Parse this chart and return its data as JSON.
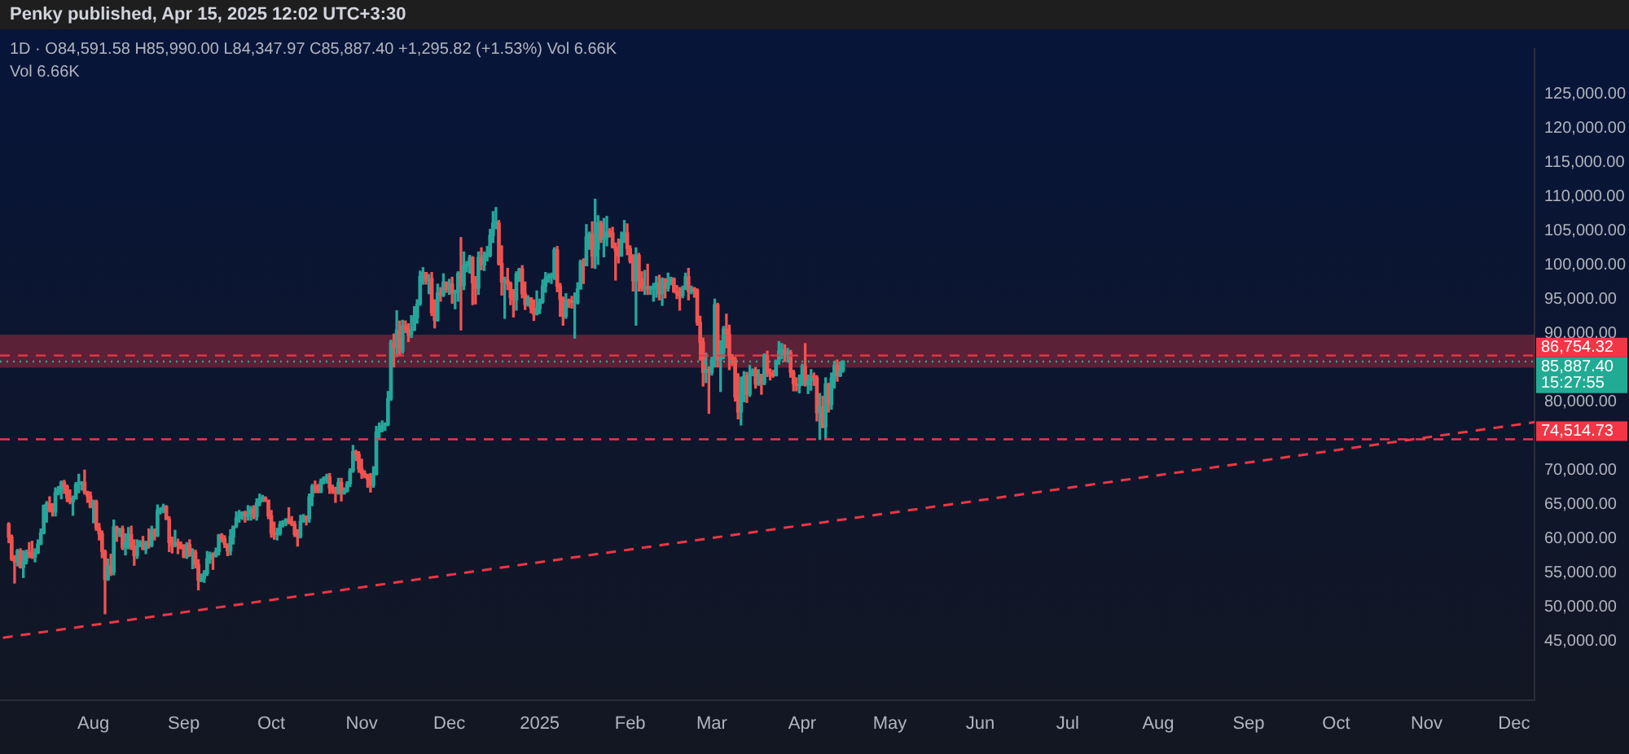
{
  "chart_data": {
    "type": "candlestick",
    "title": "Penky published, Apr 15, 2025 12:02 UTC+3:30",
    "subtitle": "1D · O84,591.58 H85,990.00 L84,347.97 C85,887.40 +1,295.82 (+1.53%) Vol 6.66K",
    "annotations": [
      "Vol 6.66K"
    ],
    "x": [
      "2024-07-03",
      "2024-07-04",
      "2024-07-05",
      "2024-07-06",
      "2024-07-07",
      "2024-07-08",
      "2024-07-09",
      "2024-07-10",
      "2024-07-11",
      "2024-07-12",
      "2024-07-13",
      "2024-07-14",
      "2024-07-15",
      "2024-07-16",
      "2024-07-17",
      "2024-07-18",
      "2024-07-19",
      "2024-07-20",
      "2024-07-21",
      "2024-07-22",
      "2024-07-23",
      "2024-07-24",
      "2024-07-25",
      "2024-07-26",
      "2024-07-27",
      "2024-07-28",
      "2024-07-29",
      "2024-07-30",
      "2024-07-31",
      "2024-08-01",
      "2024-08-02",
      "2024-08-03",
      "2024-08-04",
      "2024-08-05",
      "2024-08-06",
      "2024-08-07",
      "2024-08-08",
      "2024-08-09",
      "2024-08-10",
      "2024-08-11",
      "2024-08-12",
      "2024-08-13",
      "2024-08-14",
      "2024-08-15",
      "2024-08-16",
      "2024-08-17",
      "2024-08-18",
      "2024-08-19",
      "2024-08-20",
      "2024-08-21",
      "2024-08-22",
      "2024-08-23",
      "2024-08-24",
      "2024-08-25",
      "2024-08-26",
      "2024-08-27",
      "2024-08-28",
      "2024-08-29",
      "2024-08-30",
      "2024-08-31",
      "2024-09-01",
      "2024-09-02",
      "2024-09-03",
      "2024-09-04",
      "2024-09-05",
      "2024-09-06",
      "2024-09-07",
      "2024-09-08",
      "2024-09-09",
      "2024-09-10",
      "2024-09-11",
      "2024-09-12",
      "2024-09-13",
      "2024-09-14",
      "2024-09-15",
      "2024-09-16",
      "2024-09-17",
      "2024-09-18",
      "2024-09-19",
      "2024-09-20",
      "2024-09-21",
      "2024-09-22",
      "2024-09-23",
      "2024-09-24",
      "2024-09-25",
      "2024-09-26",
      "2024-09-27",
      "2024-09-28",
      "2024-09-29",
      "2024-09-30",
      "2024-10-01",
      "2024-10-02",
      "2024-10-03",
      "2024-10-04",
      "2024-10-05",
      "2024-10-06",
      "2024-10-07",
      "2024-10-08",
      "2024-10-09",
      "2024-10-10",
      "2024-10-11",
      "2024-10-12",
      "2024-10-13",
      "2024-10-14",
      "2024-10-15",
      "2024-10-16",
      "2024-10-17",
      "2024-10-18",
      "2024-10-19",
      "2024-10-20",
      "2024-10-21",
      "2024-10-22",
      "2024-10-23",
      "2024-10-24",
      "2024-10-25",
      "2024-10-26",
      "2024-10-27",
      "2024-10-28",
      "2024-10-29",
      "2024-10-30",
      "2024-10-31",
      "2024-11-01",
      "2024-11-02",
      "2024-11-03",
      "2024-11-04",
      "2024-11-05",
      "2024-11-06",
      "2024-11-07",
      "2024-11-08",
      "2024-11-09",
      "2024-11-10",
      "2024-11-11",
      "2024-11-12",
      "2024-11-13",
      "2024-11-14",
      "2024-11-15",
      "2024-11-16",
      "2024-11-17",
      "2024-11-18",
      "2024-11-19",
      "2024-11-20",
      "2024-11-21",
      "2024-11-22",
      "2024-11-23",
      "2024-11-24",
      "2024-11-25",
      "2024-11-26",
      "2024-11-27",
      "2024-11-28",
      "2024-11-29",
      "2024-11-30",
      "2024-12-01",
      "2024-12-02",
      "2024-12-03",
      "2024-12-04",
      "2024-12-05",
      "2024-12-06",
      "2024-12-07",
      "2024-12-08",
      "2024-12-09",
      "2024-12-10",
      "2024-12-11",
      "2024-12-12",
      "2024-12-13",
      "2024-12-14",
      "2024-12-15",
      "2024-12-16",
      "2024-12-17",
      "2024-12-18",
      "2024-12-19",
      "2024-12-20",
      "2024-12-21",
      "2024-12-22",
      "2024-12-23",
      "2024-12-24",
      "2024-12-25",
      "2024-12-26",
      "2024-12-27",
      "2024-12-28",
      "2024-12-29",
      "2024-12-30",
      "2024-12-31",
      "2025-01-01",
      "2025-01-02",
      "2025-01-03",
      "2025-01-04",
      "2025-01-05",
      "2025-01-06",
      "2025-01-07",
      "2025-01-08",
      "2025-01-09",
      "2025-01-10",
      "2025-01-11",
      "2025-01-12",
      "2025-01-13",
      "2025-01-14",
      "2025-01-15",
      "2025-01-16",
      "2025-01-17",
      "2025-01-18",
      "2025-01-19",
      "2025-01-20",
      "2025-01-21",
      "2025-01-22",
      "2025-01-23",
      "2025-01-24",
      "2025-01-25",
      "2025-01-26",
      "2025-01-27",
      "2025-01-28",
      "2025-01-29",
      "2025-01-30",
      "2025-01-31",
      "2025-02-01",
      "2025-02-02",
      "2025-02-03",
      "2025-02-04",
      "2025-02-05",
      "2025-02-06",
      "2025-02-07",
      "2025-02-08",
      "2025-02-09",
      "2025-02-10",
      "2025-02-11",
      "2025-02-12",
      "2025-02-13",
      "2025-02-14",
      "2025-02-15",
      "2025-02-16",
      "2025-02-17",
      "2025-02-18",
      "2025-02-19",
      "2025-02-20",
      "2025-02-21",
      "2025-02-22",
      "2025-02-23",
      "2025-02-24",
      "2025-02-25",
      "2025-02-26",
      "2025-02-27",
      "2025-02-28",
      "2025-03-01",
      "2025-03-02",
      "2025-03-03",
      "2025-03-04",
      "2025-03-05",
      "2025-03-06",
      "2025-03-07",
      "2025-03-08",
      "2025-03-09",
      "2025-03-10",
      "2025-03-11",
      "2025-03-12",
      "2025-03-13",
      "2025-03-14",
      "2025-03-15",
      "2025-03-16",
      "2025-03-17",
      "2025-03-18",
      "2025-03-19",
      "2025-03-20",
      "2025-03-21",
      "2025-03-22",
      "2025-03-23",
      "2025-03-24",
      "2025-03-25",
      "2025-03-26",
      "2025-03-27",
      "2025-03-28",
      "2025-03-29",
      "2025-03-30",
      "2025-03-31",
      "2025-04-01",
      "2025-04-02",
      "2025-04-03",
      "2025-04-04",
      "2025-04-05",
      "2025-04-06",
      "2025-04-07",
      "2025-04-08",
      "2025-04-09",
      "2025-04-10",
      "2025-04-11",
      "2025-04-12",
      "2025-04-13",
      "2025-04-14",
      "2025-04-15"
    ],
    "ohlc": [
      [
        62100,
        62300,
        59400,
        60200
      ],
      [
        60200,
        60500,
        56800,
        57000
      ],
      [
        57000,
        57500,
        53500,
        56600
      ],
      [
        56600,
        58400,
        56000,
        58200
      ],
      [
        58200,
        58500,
        55700,
        55800
      ],
      [
        55800,
        58200,
        54300,
        56700
      ],
      [
        56700,
        58300,
        56300,
        58000
      ],
      [
        58000,
        59400,
        57200,
        57700
      ],
      [
        57700,
        59600,
        57100,
        57300
      ],
      [
        57300,
        58500,
        56600,
        57900
      ],
      [
        57900,
        59800,
        57800,
        59200
      ],
      [
        59200,
        61400,
        59100,
        60800
      ],
      [
        60800,
        64900,
        60700,
        64800
      ],
      [
        64800,
        65400,
        62400,
        65100
      ],
      [
        65100,
        66100,
        63900,
        64100
      ],
      [
        64100,
        65100,
        63300,
        63900
      ],
      [
        63900,
        67400,
        63300,
        66700
      ],
      [
        66700,
        67600,
        66400,
        67100
      ],
      [
        67100,
        68400,
        65800,
        68200
      ],
      [
        68200,
        68500,
        66600,
        67600
      ],
      [
        67600,
        67800,
        65400,
        65900
      ],
      [
        65900,
        67100,
        65100,
        65400
      ],
      [
        65400,
        66200,
        63400,
        65800
      ],
      [
        65800,
        68200,
        65800,
        67900
      ],
      [
        67900,
        69400,
        66700,
        68000
      ],
      [
        68000,
        68300,
        67100,
        68200
      ],
      [
        68200,
        70000,
        66500,
        66800
      ],
      [
        66800,
        66900,
        65300,
        66200
      ],
      [
        66200,
        66800,
        64500,
        64600
      ],
      [
        64600,
        65600,
        62300,
        65400
      ],
      [
        65400,
        65600,
        61200,
        61500
      ],
      [
        61500,
        62200,
        59800,
        60700
      ],
      [
        60700,
        61100,
        57200,
        58100
      ],
      [
        58100,
        58300,
        49000,
        54000
      ],
      [
        54000,
        57000,
        53900,
        56000
      ],
      [
        56000,
        57700,
        54600,
        55100
      ],
      [
        55100,
        62700,
        54700,
        61700
      ],
      [
        61700,
        61800,
        59600,
        60900
      ],
      [
        60900,
        61500,
        60300,
        61400
      ],
      [
        61400,
        61800,
        58400,
        58700
      ],
      [
        58700,
        60700,
        57600,
        59400
      ],
      [
        59400,
        61600,
        58500,
        60600
      ],
      [
        60600,
        61800,
        58400,
        58700
      ],
      [
        58700,
        59800,
        56100,
        57500
      ],
      [
        57500,
        59800,
        57100,
        58900
      ],
      [
        58900,
        59700,
        58800,
        59500
      ],
      [
        59500,
        60300,
        58400,
        58400
      ],
      [
        58400,
        59600,
        57800,
        59500
      ],
      [
        59500,
        61400,
        58600,
        59000
      ],
      [
        59000,
        61800,
        58800,
        61200
      ],
      [
        61200,
        61400,
        59800,
        60400
      ],
      [
        60400,
        64900,
        60300,
        64100
      ],
      [
        64100,
        64500,
        63600,
        64200
      ],
      [
        64200,
        65000,
        63800,
        64700
      ],
      [
        64700,
        64800,
        62800,
        62800
      ],
      [
        62800,
        63200,
        58100,
        59400
      ],
      [
        59400,
        60200,
        57900,
        59000
      ],
      [
        59000,
        61200,
        58800,
        59400
      ],
      [
        59400,
        59900,
        57800,
        59100
      ],
      [
        59100,
        59500,
        58500,
        58600
      ],
      [
        58600,
        59100,
        57200,
        57300
      ],
      [
        57300,
        59400,
        57100,
        59100
      ],
      [
        59100,
        59800,
        57400,
        57500
      ],
      [
        57500,
        58500,
        55600,
        58000
      ],
      [
        58000,
        58300,
        55700,
        56200
      ],
      [
        56200,
        56900,
        52500,
        53900
      ],
      [
        53900,
        54800,
        53700,
        54200
      ],
      [
        54200,
        55300,
        53600,
        54900
      ],
      [
        54900,
        58100,
        54600,
        57000
      ],
      [
        57000,
        58000,
        56400,
        57600
      ],
      [
        57600,
        57900,
        55500,
        57400
      ],
      [
        57400,
        58600,
        57300,
        58100
      ],
      [
        58100,
        60600,
        57600,
        60500
      ],
      [
        60500,
        60700,
        59500,
        60000
      ],
      [
        60000,
        60400,
        58700,
        59200
      ],
      [
        59200,
        59200,
        57500,
        58200
      ],
      [
        58200,
        61300,
        57600,
        60300
      ],
      [
        60300,
        61800,
        59200,
        61800
      ],
      [
        61800,
        63900,
        61600,
        63000
      ],
      [
        63000,
        64100,
        62400,
        63300
      ],
      [
        63300,
        63900,
        62800,
        63800
      ],
      [
        63800,
        64000,
        62400,
        63300
      ],
      [
        63300,
        64800,
        62700,
        63600
      ],
      [
        63600,
        64700,
        62700,
        64300
      ],
      [
        64300,
        64800,
        62900,
        63200
      ],
      [
        63200,
        65800,
        62700,
        65200
      ],
      [
        65200,
        66500,
        64800,
        65800
      ],
      [
        65800,
        66300,
        65400,
        65900
      ],
      [
        65900,
        66100,
        65400,
        65600
      ],
      [
        65600,
        65600,
        62900,
        63300
      ],
      [
        63300,
        64100,
        60200,
        60800
      ],
      [
        60800,
        62400,
        59900,
        60600
      ],
      [
        60600,
        61500,
        59800,
        60700
      ],
      [
        60700,
        62500,
        60500,
        62100
      ],
      [
        62100,
        62600,
        61700,
        62500
      ],
      [
        62500,
        62900,
        61900,
        62800
      ],
      [
        62800,
        64500,
        62200,
        62200
      ],
      [
        62200,
        63200,
        61900,
        62100
      ],
      [
        62100,
        62500,
        60300,
        60600
      ],
      [
        60600,
        61300,
        58900,
        60300
      ],
      [
        60300,
        63400,
        60100,
        62500
      ],
      [
        62500,
        63500,
        62400,
        63200
      ],
      [
        63200,
        63300,
        62000,
        62900
      ],
      [
        62900,
        66500,
        62400,
        66100
      ],
      [
        66100,
        67900,
        64800,
        67600
      ],
      [
        67600,
        68400,
        66700,
        67400
      ],
      [
        67400,
        67900,
        66700,
        66800
      ],
      [
        66800,
        68700,
        66700,
        68400
      ],
      [
        68400,
        69000,
        68000,
        68900
      ],
      [
        68900,
        69400,
        68100,
        69000
      ],
      [
        69000,
        69500,
        66600,
        67400
      ],
      [
        67400,
        67800,
        66600,
        66900
      ],
      [
        66900,
        67500,
        65300,
        66700
      ],
      [
        66700,
        68800,
        66500,
        68200
      ],
      [
        68200,
        68800,
        65500,
        66600
      ],
      [
        66600,
        67400,
        66500,
        67000
      ],
      [
        67000,
        68300,
        66800,
        68000
      ],
      [
        68000,
        70200,
        67600,
        69900
      ],
      [
        69900,
        73600,
        69700,
        72700
      ],
      [
        72700,
        72900,
        71400,
        72300
      ],
      [
        72300,
        72700,
        69700,
        70200
      ],
      [
        70200,
        71600,
        68800,
        69500
      ],
      [
        69500,
        69900,
        68900,
        69300
      ],
      [
        69300,
        69400,
        67500,
        68700
      ],
      [
        68700,
        69500,
        66800,
        67800
      ],
      [
        67800,
        70500,
        67500,
        69400
      ],
      [
        69400,
        76400,
        69300,
        75600
      ],
      [
        75600,
        76900,
        74600,
        75900
      ],
      [
        75900,
        77200,
        75600,
        76500
      ],
      [
        76500,
        76900,
        75800,
        76700
      ],
      [
        76700,
        81500,
        76500,
        80400
      ],
      [
        80400,
        89000,
        80200,
        88700
      ],
      [
        88700,
        89900,
        85100,
        87900
      ],
      [
        87900,
        93300,
        86600,
        90500
      ],
      [
        90500,
        91800,
        86700,
        87400
      ],
      [
        87400,
        91900,
        87100,
        91100
      ],
      [
        91100,
        91800,
        90100,
        90600
      ],
      [
        90600,
        91400,
        88800,
        89800
      ],
      [
        89800,
        92600,
        89400,
        90500
      ],
      [
        90500,
        93900,
        90400,
        92300
      ],
      [
        92300,
        94900,
        91500,
        94300
      ],
      [
        94300,
        99100,
        94100,
        98300
      ],
      [
        98300,
        99600,
        97200,
        98900
      ],
      [
        98900,
        98900,
        97200,
        97700
      ],
      [
        97700,
        98600,
        95800,
        98000
      ],
      [
        98000,
        98900,
        92600,
        93000
      ],
      [
        93000,
        94900,
        90800,
        91900
      ],
      [
        91900,
        97200,
        91800,
        95900
      ],
      [
        95900,
        96700,
        94700,
        95600
      ],
      [
        95600,
        98700,
        95400,
        97500
      ],
      [
        97500,
        97500,
        96000,
        96400
      ],
      [
        96400,
        97900,
        95700,
        97200
      ],
      [
        97200,
        98200,
        94400,
        95900
      ],
      [
        95900,
        96300,
        93600,
        96000
      ],
      [
        96000,
        99000,
        94700,
        98800
      ],
      [
        98800,
        104000,
        90500,
        97000
      ],
      [
        97000,
        101900,
        96400,
        99900
      ],
      [
        99900,
        100500,
        99000,
        99900
      ],
      [
        99900,
        101400,
        98800,
        101100
      ],
      [
        101100,
        101200,
        94200,
        97400
      ],
      [
        97400,
        98300,
        94300,
        96600
      ],
      [
        96600,
        101900,
        95700,
        101100
      ],
      [
        101100,
        102500,
        99300,
        100000
      ],
      [
        100000,
        101900,
        99200,
        101400
      ],
      [
        101400,
        102700,
        100600,
        101400
      ],
      [
        101400,
        105200,
        101200,
        104300
      ],
      [
        104300,
        107800,
        103300,
        106100
      ],
      [
        106100,
        108400,
        105300,
        106100
      ],
      [
        106100,
        106500,
        100000,
        100200
      ],
      [
        100200,
        102800,
        95600,
        97500
      ],
      [
        97500,
        98200,
        92200,
        97800
      ],
      [
        97800,
        99500,
        96400,
        97300
      ],
      [
        97300,
        97500,
        94200,
        95200
      ],
      [
        95200,
        96400,
        92400,
        94900
      ],
      [
        94900,
        99000,
        93400,
        98700
      ],
      [
        98700,
        99500,
        97600,
        99400
      ],
      [
        99400,
        99900,
        95200,
        95800
      ],
      [
        95800,
        97500,
        93500,
        94200
      ],
      [
        94200,
        95500,
        94000,
        95200
      ],
      [
        95200,
        95200,
        93000,
        93700
      ],
      [
        93700,
        94900,
        91900,
        92800
      ],
      [
        92800,
        96200,
        92700,
        93600
      ],
      [
        93600,
        95000,
        92900,
        94600
      ],
      [
        94600,
        97800,
        94400,
        96900
      ],
      [
        96900,
        98900,
        96000,
        98100
      ],
      [
        98100,
        98700,
        97500,
        98200
      ],
      [
        98200,
        98800,
        97300,
        98300
      ],
      [
        98300,
        102500,
        97900,
        102200
      ],
      [
        102200,
        102700,
        96100,
        96900
      ],
      [
        96900,
        97300,
        92500,
        95000
      ],
      [
        95000,
        95300,
        91200,
        92500
      ],
      [
        92500,
        95800,
        92200,
        94700
      ],
      [
        94700,
        95000,
        93800,
        94600
      ],
      [
        94600,
        95400,
        93700,
        94500
      ],
      [
        94500,
        95900,
        89300,
        94500
      ],
      [
        94500,
        97400,
        94300,
        96500
      ],
      [
        96500,
        100700,
        96500,
        100500
      ],
      [
        100500,
        100900,
        97300,
        99900
      ],
      [
        99900,
        105900,
        99900,
        104100
      ],
      [
        104100,
        104800,
        102300,
        104500
      ],
      [
        104500,
        106300,
        99600,
        101300
      ],
      [
        101300,
        109600,
        99500,
        102300
      ],
      [
        102300,
        107200,
        100100,
        106100
      ],
      [
        106100,
        106400,
        103300,
        103700
      ],
      [
        103700,
        106800,
        101200,
        104000
      ],
      [
        104000,
        107100,
        102800,
        104800
      ],
      [
        104800,
        105300,
        104100,
        104700
      ],
      [
        104700,
        105500,
        102500,
        102600
      ],
      [
        102600,
        103200,
        97800,
        102100
      ],
      [
        102100,
        103800,
        100300,
        101300
      ],
      [
        101300,
        104800,
        101300,
        103700
      ],
      [
        103700,
        106500,
        103300,
        104700
      ],
      [
        104700,
        106000,
        101500,
        102400
      ],
      [
        102400,
        102800,
        100300,
        100600
      ],
      [
        100600,
        101500,
        96200,
        97700
      ],
      [
        97700,
        102500,
        91200,
        101400
      ],
      [
        101400,
        101700,
        96200,
        97900
      ],
      [
        97900,
        99000,
        96200,
        96600
      ],
      [
        96600,
        99200,
        95700,
        96600
      ],
      [
        96600,
        100100,
        95700,
        96500
      ],
      [
        96500,
        96900,
        95700,
        96500
      ],
      [
        96500,
        97300,
        94700,
        96500
      ],
      [
        96500,
        98300,
        95300,
        97400
      ],
      [
        97400,
        98500,
        94900,
        95800
      ],
      [
        95800,
        98100,
        94100,
        97900
      ],
      [
        97900,
        98000,
        95200,
        96600
      ],
      [
        96600,
        98800,
        96200,
        97500
      ],
      [
        97500,
        98200,
        97100,
        98000
      ],
      [
        98000,
        98100,
        96000,
        96100
      ],
      [
        96100,
        97000,
        95100,
        95800
      ],
      [
        95800,
        96700,
        93400,
        95500
      ],
      [
        95500,
        96900,
        95200,
        96600
      ],
      [
        96600,
        98800,
        96400,
        98300
      ],
      [
        98300,
        99500,
        94900,
        96100
      ],
      [
        96100,
        96900,
        95800,
        96600
      ],
      [
        96600,
        96700,
        95300,
        96300
      ],
      [
        96300,
        96500,
        91200,
        91600
      ],
      [
        91600,
        92500,
        86100,
        88700
      ],
      [
        88700,
        89300,
        82300,
        84300
      ],
      [
        84300,
        87100,
        82800,
        84700
      ],
      [
        84700,
        85100,
        78300,
        84300
      ],
      [
        84300,
        86500,
        83900,
        86100
      ],
      [
        86100,
        95000,
        85100,
        94200
      ],
      [
        94200,
        94400,
        85100,
        86100
      ],
      [
        86100,
        88900,
        81500,
        87200
      ],
      [
        87200,
        91000,
        86300,
        90600
      ],
      [
        90600,
        92800,
        87900,
        89900
      ],
      [
        89900,
        91200,
        84700,
        86700
      ],
      [
        86700,
        86900,
        85300,
        86200
      ],
      [
        86200,
        86500,
        80100,
        80700
      ],
      [
        80700,
        84100,
        77500,
        78500
      ],
      [
        78500,
        83600,
        76600,
        82900
      ],
      [
        82900,
        84400,
        80000,
        83700
      ],
      [
        83700,
        84300,
        79900,
        81100
      ],
      [
        81100,
        85300,
        80800,
        84000
      ],
      [
        84000,
        84800,
        83800,
        84600
      ],
      [
        84600,
        85000,
        82000,
        82600
      ],
      [
        82600,
        84700,
        82400,
        84000
      ],
      [
        84000,
        84000,
        81100,
        82700
      ],
      [
        82700,
        87000,
        82500,
        86800
      ],
      [
        86800,
        87400,
        83700,
        84200
      ],
      [
        84200,
        84800,
        83200,
        84000
      ],
      [
        84000,
        84600,
        83600,
        83800
      ],
      [
        83800,
        86100,
        83800,
        86000
      ],
      [
        86000,
        88800,
        85500,
        87400
      ],
      [
        87400,
        88500,
        86300,
        87500
      ],
      [
        87500,
        88300,
        85900,
        86900
      ],
      [
        86900,
        87800,
        85800,
        87200
      ],
      [
        87200,
        87500,
        83600,
        84300
      ],
      [
        84300,
        84600,
        81600,
        82600
      ],
      [
        82600,
        83500,
        81600,
        82300
      ],
      [
        82300,
        83900,
        81300,
        82500
      ],
      [
        82500,
        85500,
        82400,
        85200
      ],
      [
        85200,
        88500,
        82300,
        82500
      ],
      [
        82500,
        83900,
        81200,
        83100
      ],
      [
        83100,
        84700,
        81700,
        83800
      ],
      [
        83800,
        84200,
        82400,
        83500
      ],
      [
        83500,
        83800,
        77200,
        78400
      ],
      [
        78400,
        81200,
        74500,
        79200
      ],
      [
        79200,
        80800,
        76200,
        76300
      ],
      [
        76300,
        83500,
        74600,
        82600
      ],
      [
        82600,
        82700,
        78500,
        79600
      ],
      [
        79600,
        84200,
        78900,
        83400
      ],
      [
        83400,
        85900,
        82000,
        85300
      ],
      [
        85300,
        86100,
        83000,
        83800
      ],
      [
        83800,
        85800,
        83700,
        84591.58
      ],
      [
        84591.58,
        85990,
        84347.97,
        85887.4
      ]
    ],
    "series": [
      {
        "type": "line",
        "x": [
          "2024-07-01",
          "2025-12-08"
        ],
        "values": [
          45500,
          77000
        ],
        "color": "#f23645",
        "line_style": "dashed"
      }
    ],
    "xlim": [
      "2024-06-30",
      "2025-12-08"
    ],
    "xticks": [
      {
        "value": "2024-08-01",
        "label": "Aug"
      },
      {
        "value": "2024-09-01",
        "label": "Sep"
      },
      {
        "value": "2024-10-01",
        "label": "Oct"
      },
      {
        "value": "2024-11-01",
        "label": "Nov"
      },
      {
        "value": "2024-12-01",
        "label": "Dec"
      },
      {
        "value": "2025-01-01",
        "label": "2025"
      },
      {
        "value": "2025-02-01",
        "label": "Feb"
      },
      {
        "value": "2025-03-01",
        "label": "Mar"
      },
      {
        "value": "2025-04-01",
        "label": "Apr"
      },
      {
        "value": "2025-05-01",
        "label": "May"
      },
      {
        "value": "2025-06-01",
        "label": "Jun"
      },
      {
        "value": "2025-07-01",
        "label": "Jul"
      },
      {
        "value": "2025-08-01",
        "label": "Aug"
      },
      {
        "value": "2025-09-01",
        "label": "Sep"
      },
      {
        "value": "2025-10-01",
        "label": "Oct"
      },
      {
        "value": "2025-11-01",
        "label": "Nov"
      },
      {
        "value": "2025-12-01",
        "label": "Dec"
      }
    ],
    "ylim": [
      36400,
      131600
    ],
    "yticks": [
      {
        "value": 45000,
        "label": "45,000.00"
      },
      {
        "value": 50000,
        "label": "50,000.00"
      },
      {
        "value": 55000,
        "label": "55,000.00"
      },
      {
        "value": 60000,
        "label": "60,000.00"
      },
      {
        "value": 65000,
        "label": "65,000.00"
      },
      {
        "value": 70000,
        "label": "70,000.00"
      },
      {
        "value": 80000,
        "label": "80,000.00"
      },
      {
        "value": 90000,
        "label": "90,000.00"
      },
      {
        "value": 95000,
        "label": "95,000.00"
      },
      {
        "value": 100000,
        "label": "100,000.00"
      },
      {
        "value": 105000,
        "label": "105,000.00"
      },
      {
        "value": 110000,
        "label": "110,000.00"
      },
      {
        "value": 115000,
        "label": "115,000.00"
      },
      {
        "value": 120000,
        "label": "120,000.00"
      },
      {
        "value": 125000,
        "label": "125,000.00"
      }
    ],
    "ref_lines": [
      {
        "axis": "y",
        "value": 86754.32,
        "label": "86,754.32",
        "color": "#f23645",
        "line_style": "dashed"
      },
      {
        "axis": "y",
        "value": 85887.4,
        "label": "85,887.40\n15:27:55",
        "color": "#22ab94",
        "line_style": "dotted"
      },
      {
        "axis": "y",
        "value": 74514.73,
        "label": "74,514.73",
        "color": "#f23645",
        "line_style": "dashed"
      }
    ],
    "bands": [
      {
        "axis": "y",
        "from": 85000,
        "to": 89800,
        "color": "#f23645"
      }
    ],
    "grid": false,
    "legend": false
  }
}
